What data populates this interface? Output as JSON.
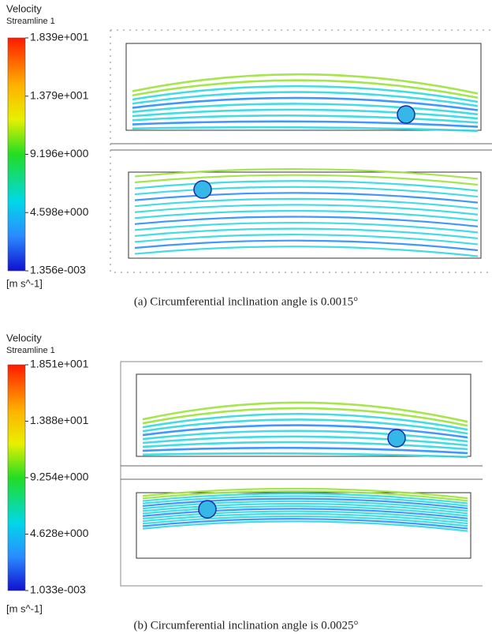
{
  "panels": [
    {
      "legend": {
        "title": "Velocity",
        "subtitle": "Streamline 1",
        "ticks": [
          "1.839e+001",
          "1.379e+001",
          "9.196e+000",
          "4.598e+000",
          "1.356e-003"
        ],
        "unit": "[m s^-1]"
      },
      "caption": "(a) Circumferential inclination angle is 0.0015°"
    },
    {
      "legend": {
        "title": "Velocity",
        "subtitle": "Streamline 1",
        "ticks": [
          "1.851e+001",
          "1.388e+001",
          "9.254e+000",
          "4.628e+000",
          "1.033e-003"
        ],
        "unit": "[m s^-1]"
      },
      "caption": "(b) Circumferential inclination angle is 0.0025°"
    }
  ]
}
